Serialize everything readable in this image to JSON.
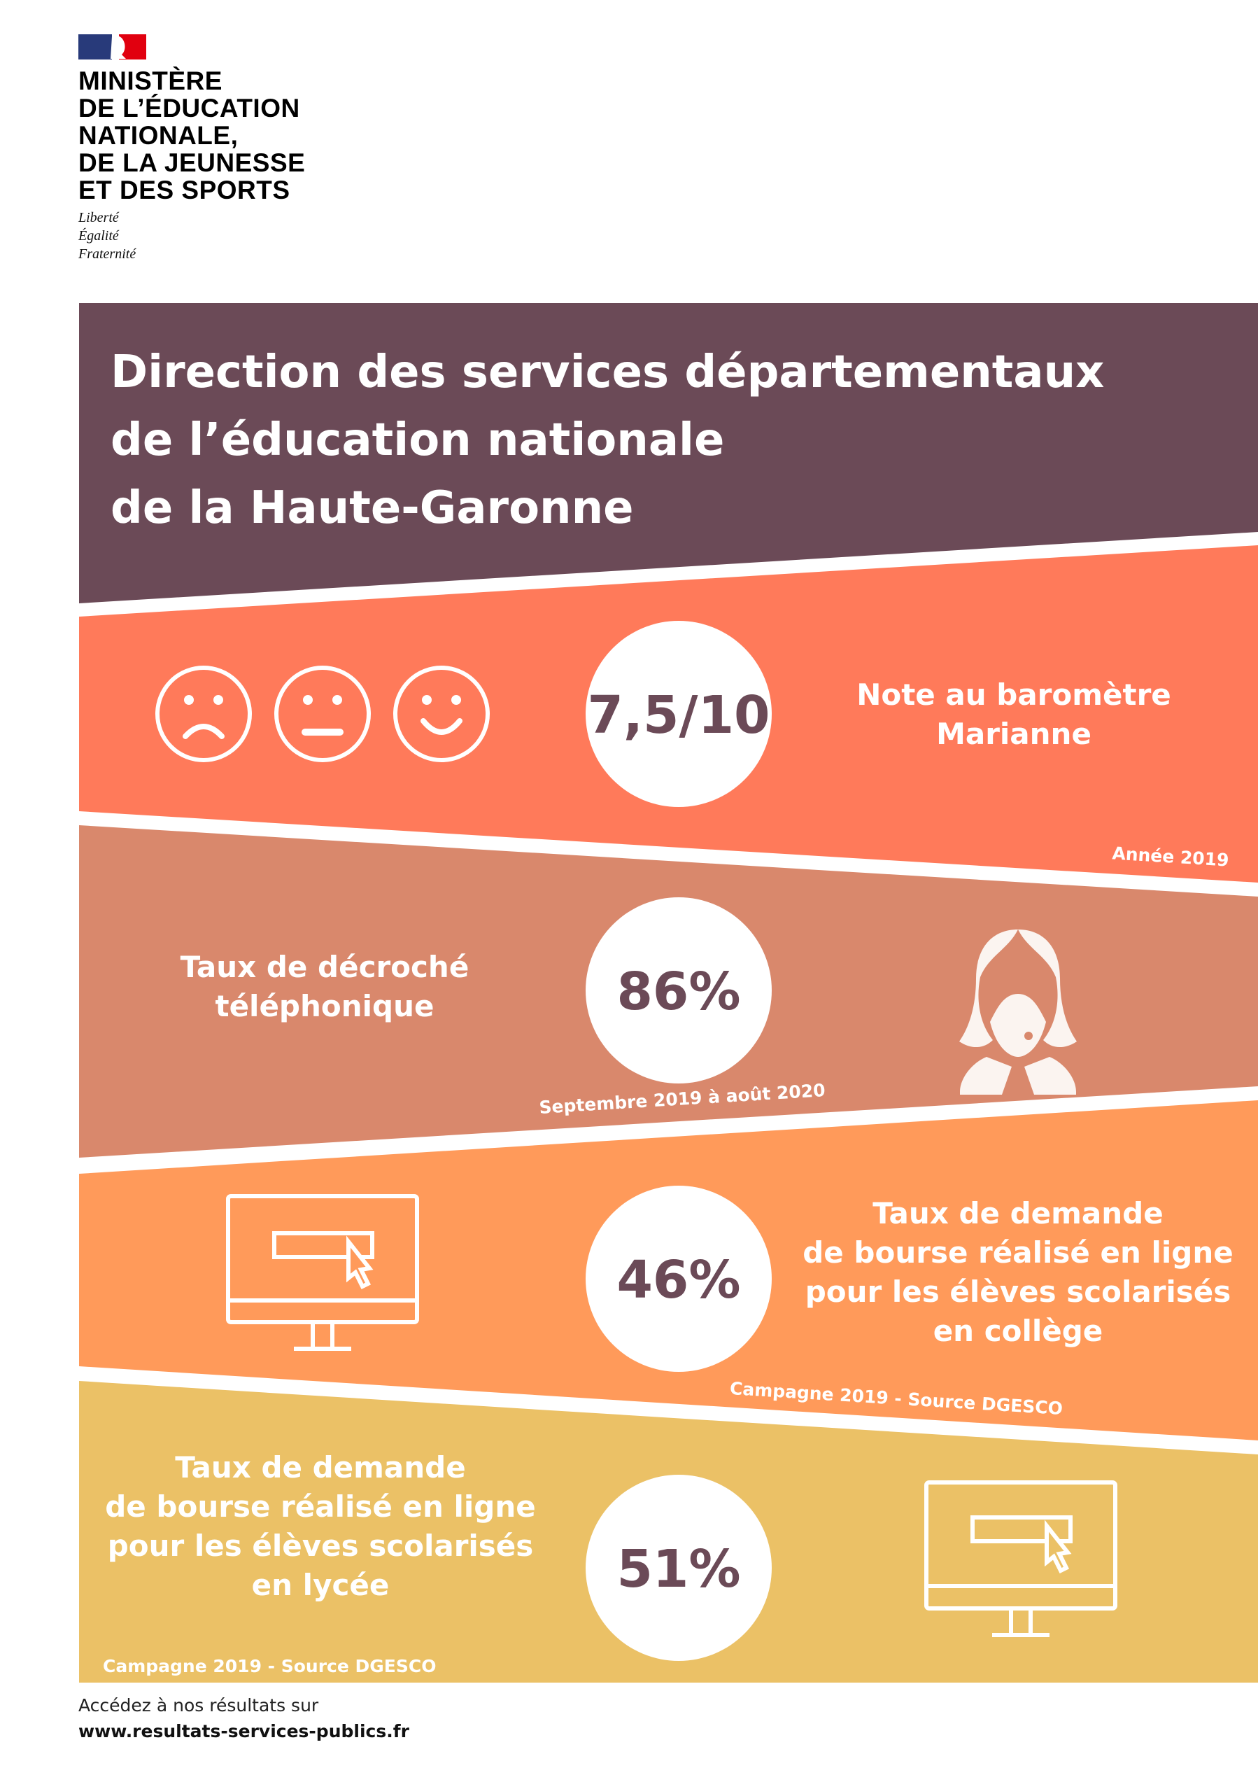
{
  "logo": {
    "ministry_lines": [
      "MINISTÈRE",
      "DE L’ÉDUCATION",
      "NATIONALE,",
      "DE LA JEUNESSE",
      "ET DES SPORTS"
    ],
    "motto": [
      "Liberté",
      "Égalité",
      "Fraternité"
    ]
  },
  "header": {
    "title_lines": [
      "Direction des services départementaux",
      "de l’éducation nationale",
      "de la Haute-Garonne"
    ]
  },
  "colors": {
    "header": "#6b4a57",
    "band1": "#ff7a5a",
    "band2": "#d9886c",
    "band3": "#ff9a5a",
    "band4": "#ebc166",
    "number": "#6b4a57"
  },
  "indicators": [
    {
      "value": "7,5/10",
      "label_lines": [
        "Note au baromètre",
        "Marianne"
      ],
      "period": "Année 2019",
      "icon": "smiley-rating-icons"
    },
    {
      "value": "86%",
      "label_lines": [
        "Taux de décroché",
        "téléphonique"
      ],
      "period": "Septembre 2019 à août 2020",
      "icon": "call-center-agent-icon"
    },
    {
      "value": "46%",
      "label_lines": [
        "Taux de demande",
        "de bourse réalisé en ligne",
        "pour les élèves scolarisés",
        "en collège"
      ],
      "period": "Campagne 2019 - Source DGESCO",
      "icon": "computer-click-icon"
    },
    {
      "value": "51%",
      "label_lines": [
        "Taux de demande",
        "de bourse réalisé en ligne",
        "pour les élèves scolarisés",
        "en lycée"
      ],
      "period": "Campagne 2019 - Source DGESCO",
      "icon": "computer-click-icon"
    }
  ],
  "footer": {
    "text": "Accédez à nos résultats sur",
    "link": "www.resultats-services-publics.fr"
  }
}
